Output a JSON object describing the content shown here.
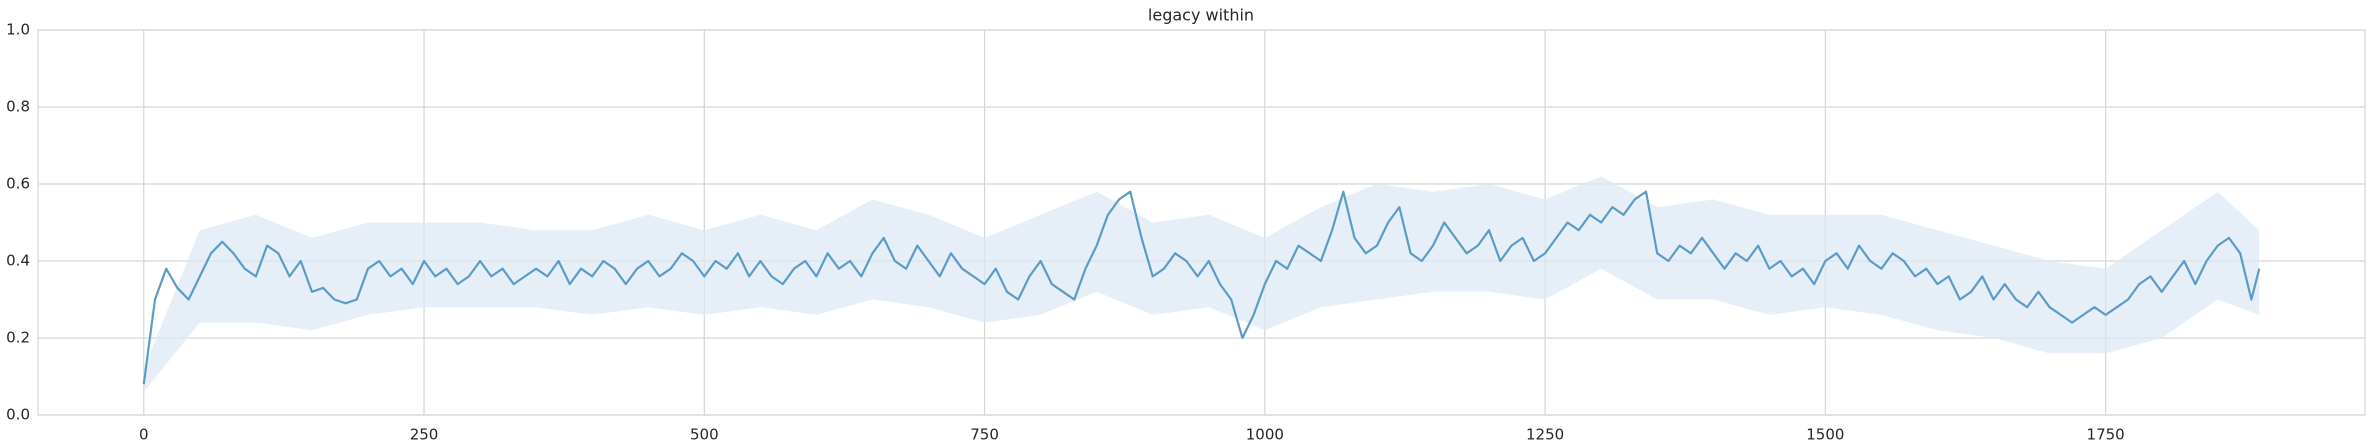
{
  "chart_data": {
    "type": "line",
    "title": "legacy within",
    "x": [
      0,
      10,
      20,
      30,
      40,
      50,
      60,
      70,
      80,
      90,
      100,
      110,
      120,
      130,
      140,
      150,
      160,
      170,
      180,
      190,
      200,
      210,
      220,
      230,
      240,
      250,
      260,
      270,
      280,
      290,
      300,
      310,
      320,
      330,
      340,
      350,
      360,
      370,
      380,
      390,
      400,
      410,
      420,
      430,
      440,
      450,
      460,
      470,
      480,
      490,
      500,
      510,
      520,
      530,
      540,
      550,
      560,
      570,
      580,
      590,
      600,
      610,
      620,
      630,
      640,
      650,
      660,
      670,
      680,
      690,
      700,
      710,
      720,
      730,
      740,
      750,
      760,
      770,
      780,
      790,
      800,
      810,
      820,
      830,
      840,
      850,
      860,
      870,
      880,
      890,
      900,
      910,
      920,
      930,
      940,
      950,
      960,
      970,
      980,
      990,
      1000,
      1010,
      1020,
      1030,
      1040,
      1050,
      1060,
      1070,
      1080,
      1090,
      1100,
      1110,
      1120,
      1130,
      1140,
      1150,
      1160,
      1170,
      1180,
      1190,
      1200,
      1210,
      1220,
      1230,
      1240,
      1250,
      1260,
      1270,
      1280,
      1290,
      1300,
      1310,
      1320,
      1330,
      1340,
      1350,
      1360,
      1370,
      1380,
      1390,
      1400,
      1410,
      1420,
      1430,
      1440,
      1450,
      1460,
      1470,
      1480,
      1490,
      1500,
      1510,
      1520,
      1530,
      1540,
      1550,
      1560,
      1570,
      1580,
      1590,
      1600,
      1610,
      1620,
      1630,
      1640,
      1650,
      1660,
      1670,
      1680,
      1690,
      1700,
      1710,
      1720,
      1730,
      1740,
      1750,
      1760,
      1770,
      1780,
      1790,
      1800,
      1810,
      1820,
      1830,
      1840,
      1850,
      1860,
      1870,
      1880,
      1887
    ],
    "series": [
      {
        "color": "#5b9bc8",
        "values": [
          0.08,
          0.3,
          0.38,
          0.33,
          0.3,
          0.36,
          0.42,
          0.45,
          0.42,
          0.38,
          0.36,
          0.44,
          0.42,
          0.36,
          0.4,
          0.32,
          0.33,
          0.3,
          0.29,
          0.3,
          0.38,
          0.4,
          0.36,
          0.38,
          0.34,
          0.4,
          0.36,
          0.38,
          0.34,
          0.36,
          0.4,
          0.36,
          0.38,
          0.34,
          0.36,
          0.38,
          0.36,
          0.4,
          0.34,
          0.38,
          0.36,
          0.4,
          0.38,
          0.34,
          0.38,
          0.4,
          0.36,
          0.38,
          0.42,
          0.4,
          0.36,
          0.4,
          0.38,
          0.42,
          0.36,
          0.4,
          0.36,
          0.34,
          0.38,
          0.4,
          0.36,
          0.42,
          0.38,
          0.4,
          0.36,
          0.42,
          0.46,
          0.4,
          0.38,
          0.44,
          0.4,
          0.36,
          0.42,
          0.38,
          0.36,
          0.34,
          0.38,
          0.32,
          0.3,
          0.36,
          0.4,
          0.34,
          0.32,
          0.3,
          0.38,
          0.44,
          0.52,
          0.56,
          0.58,
          0.46,
          0.36,
          0.38,
          0.42,
          0.4,
          0.36,
          0.4,
          0.34,
          0.3,
          0.2,
          0.26,
          0.34,
          0.4,
          0.38,
          0.44,
          0.42,
          0.4,
          0.48,
          0.58,
          0.46,
          0.42,
          0.44,
          0.5,
          0.54,
          0.42,
          0.4,
          0.44,
          0.5,
          0.46,
          0.42,
          0.44,
          0.48,
          0.4,
          0.44,
          0.46,
          0.4,
          0.42,
          0.46,
          0.5,
          0.48,
          0.52,
          0.5,
          0.54,
          0.52,
          0.56,
          0.58,
          0.42,
          0.4,
          0.44,
          0.42,
          0.46,
          0.42,
          0.38,
          0.42,
          0.4,
          0.44,
          0.38,
          0.4,
          0.36,
          0.38,
          0.34,
          0.4,
          0.42,
          0.38,
          0.44,
          0.4,
          0.38,
          0.42,
          0.4,
          0.36,
          0.38,
          0.34,
          0.36,
          0.3,
          0.32,
          0.36,
          0.3,
          0.34,
          0.3,
          0.28,
          0.32,
          0.28,
          0.26,
          0.24,
          0.26,
          0.28,
          0.26,
          0.28,
          0.3,
          0.34,
          0.36,
          0.32,
          0.36,
          0.4,
          0.34,
          0.4,
          0.44,
          0.46,
          0.42,
          0.3,
          0.38
        ]
      }
    ],
    "band": {
      "color": "#dbe8f4",
      "x": [
        0,
        50,
        100,
        150,
        200,
        250,
        300,
        350,
        400,
        450,
        500,
        550,
        600,
        650,
        700,
        750,
        800,
        850,
        900,
        950,
        1000,
        1050,
        1100,
        1150,
        1200,
        1250,
        1300,
        1350,
        1400,
        1450,
        1500,
        1550,
        1600,
        1650,
        1700,
        1750,
        1800,
        1850,
        1887
      ],
      "lower": [
        0.06,
        0.24,
        0.24,
        0.22,
        0.26,
        0.28,
        0.28,
        0.28,
        0.26,
        0.28,
        0.26,
        0.28,
        0.26,
        0.3,
        0.28,
        0.24,
        0.26,
        0.32,
        0.26,
        0.28,
        0.22,
        0.28,
        0.3,
        0.32,
        0.32,
        0.3,
        0.38,
        0.3,
        0.3,
        0.26,
        0.28,
        0.26,
        0.22,
        0.2,
        0.16,
        0.16,
        0.2,
        0.3,
        0.26
      ],
      "upper": [
        0.12,
        0.48,
        0.52,
        0.46,
        0.5,
        0.5,
        0.5,
        0.48,
        0.48,
        0.52,
        0.48,
        0.52,
        0.48,
        0.56,
        0.52,
        0.46,
        0.52,
        0.58,
        0.5,
        0.52,
        0.46,
        0.54,
        0.6,
        0.58,
        0.6,
        0.56,
        0.62,
        0.54,
        0.56,
        0.52,
        0.52,
        0.52,
        0.48,
        0.44,
        0.4,
        0.38,
        0.48,
        0.58,
        0.48
      ]
    },
    "xlim": [
      -94.35,
      1981.35
    ],
    "ylim": [
      0,
      1
    ],
    "xticks": [
      0,
      250,
      500,
      750,
      1000,
      1250,
      1500,
      1750
    ],
    "yticks": [
      {
        "value": 0,
        "label": "0.0"
      },
      0.2,
      0.4,
      0.6,
      0.8,
      {
        "value": 1,
        "label": "1.0"
      }
    ],
    "grid": true
  }
}
